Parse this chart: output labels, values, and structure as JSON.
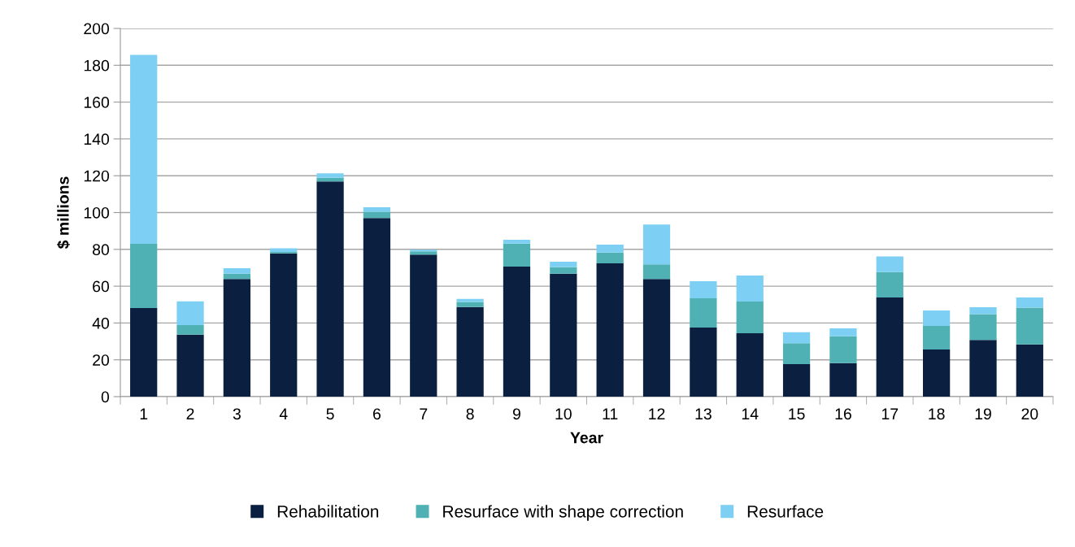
{
  "chart_data": {
    "type": "bar",
    "stacked": true,
    "xlabel": "Year",
    "ylabel": "$ millions",
    "categories": [
      "1",
      "2",
      "3",
      "4",
      "5",
      "6",
      "7",
      "8",
      "9",
      "10",
      "11",
      "12",
      "13",
      "14",
      "15",
      "16",
      "17",
      "18",
      "19",
      "20"
    ],
    "series": [
      {
        "name": "Rehabilitation",
        "color": "#0b1f40",
        "values": [
          48.1,
          33.7,
          63.9,
          77.8,
          116.9,
          97,
          77.1,
          48.7,
          70.6,
          66.8,
          72.4,
          63.9,
          37.5,
          34.4,
          17.7,
          18.2,
          53.9,
          25.6,
          30.8,
          28.4
        ]
      },
      {
        "name": "Resurface with shape correction",
        "color": "#4fb1b3",
        "values": [
          34.9,
          5.2,
          2.9,
          0.8,
          2,
          3.4,
          1.8,
          2.7,
          12.5,
          3.5,
          5.9,
          7.9,
          15.9,
          17.3,
          11.3,
          14.6,
          13.8,
          12.8,
          14,
          19.9
        ]
      },
      {
        "name": "Resurface",
        "color": "#7dd0f3",
        "values": [
          102.7,
          12.9,
          3,
          2,
          2.4,
          2.5,
          0.9,
          1.7,
          2.1,
          3,
          4.3,
          21.7,
          9.3,
          14.1,
          6,
          4.3,
          8.5,
          8.4,
          3.8,
          5.6
        ]
      }
    ],
    "ylim": [
      0,
      200
    ],
    "yticks": [
      0,
      20,
      40,
      60,
      80,
      100,
      120,
      140,
      160,
      180,
      200
    ],
    "grid": "y",
    "legend": "bottom"
  }
}
